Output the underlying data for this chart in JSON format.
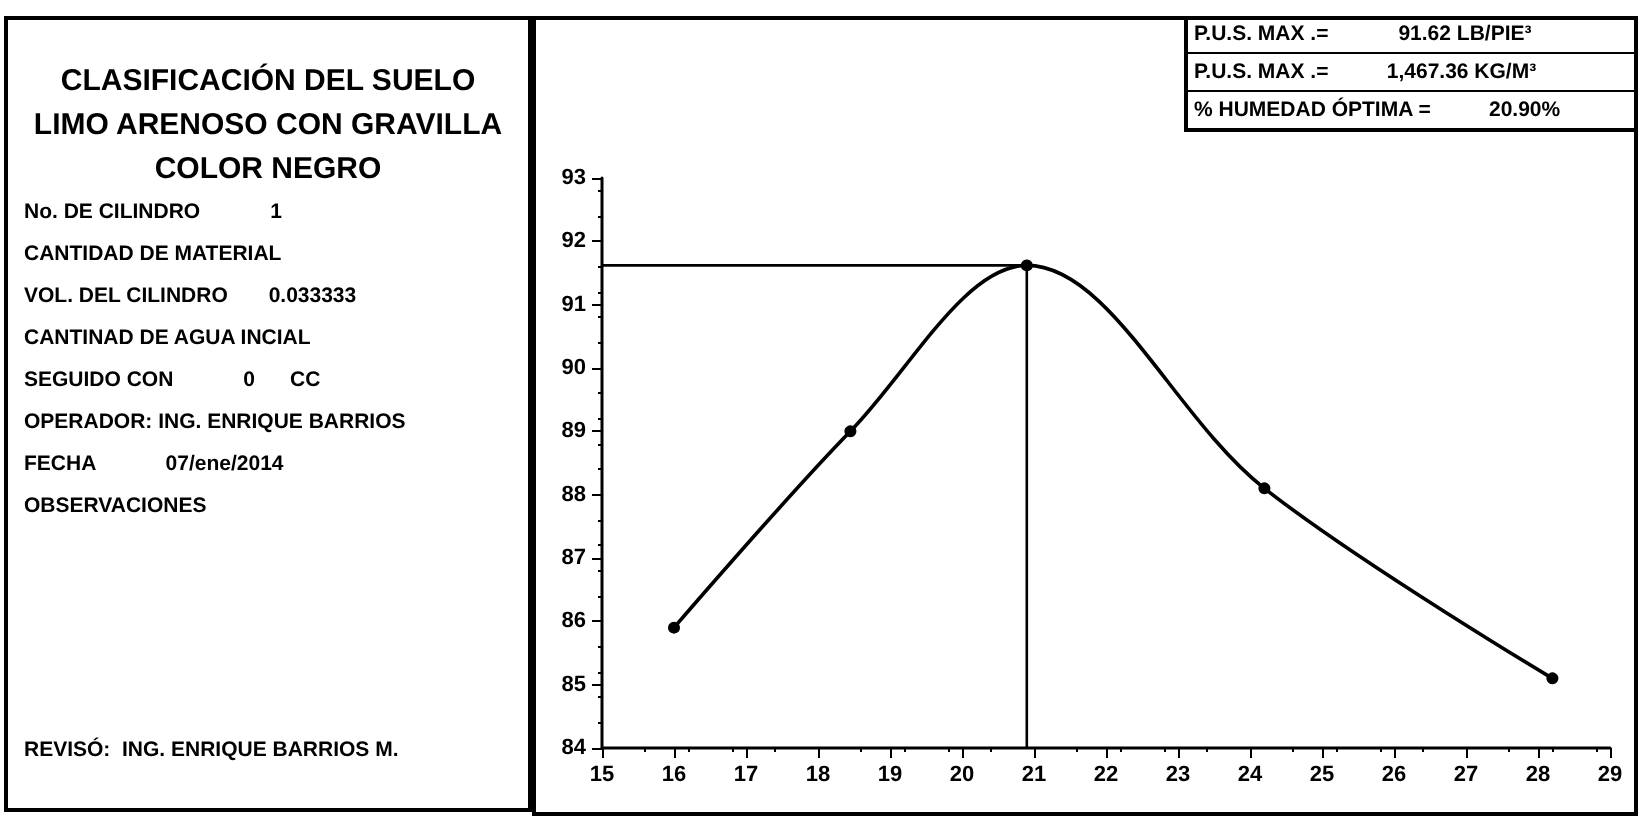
{
  "chart_data": {
    "type": "line",
    "title": "CLASIFICACIÓN DEL SUELO LIMO ARENOSO CON GRAVILLA COLOR NEGRO",
    "x": [
      16.0,
      18.45,
      20.9,
      24.2,
      28.2
    ],
    "series": [
      {
        "color": "#000000",
        "values": [
          85.9,
          89.0,
          91.62,
          88.1,
          85.1
        ]
      }
    ],
    "xlim": [
      15,
      29
    ],
    "xticks": [
      15,
      16,
      17,
      18,
      19,
      20,
      21,
      22,
      23,
      24,
      25,
      26,
      27,
      28,
      29
    ],
    "ylim": [
      84,
      93
    ],
    "yticks": [
      84,
      85,
      86,
      87,
      88,
      89,
      90,
      91,
      92,
      93
    ],
    "ref_lines": [
      {
        "axis": "y",
        "value": 91.62,
        "color": "#000000"
      },
      {
        "axis": "x",
        "value": 20.9,
        "color": "#000000"
      }
    ],
    "marker": "circle",
    "line_style": "solid",
    "grid": false,
    "annotations": [
      "No. DE CILINDRO            1",
      "CANTIDAD DE MATERIAL",
      "VOL. DEL CILINDRO       0.033333",
      "CANTINAD DE AGUA INCIAL",
      "SEGUIDO CON            0      CC",
      "OPERADOR: ING. ENRIQUE BARRIOS",
      "FECHA            07/ene/2014",
      "OBSERVACIONES",
      "REVISÓ:  ING. ENRIQUE BARRIOS M.",
      "P.U.S. MAX .=            91.62 LB/PIE³",
      "P.U.S. MAX .=          1,467.36 KG/M³",
      "% HUMEDAD ÓPTIMA =          20.90%"
    ]
  }
}
